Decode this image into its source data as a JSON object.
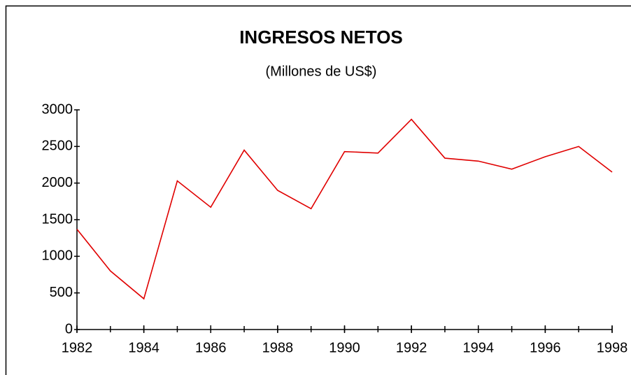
{
  "chart_data": {
    "type": "line",
    "title": "INGRESOS NETOS",
    "subtitle": "(Millones de US$)",
    "x": [
      1982,
      1983,
      1984,
      1985,
      1986,
      1987,
      1988,
      1989,
      1990,
      1991,
      1992,
      1993,
      1994,
      1995,
      1996,
      1997,
      1998
    ],
    "series": [
      {
        "name": "Ingresos netos",
        "color": "#e00000",
        "values": [
          1370,
          800,
          420,
          2030,
          1670,
          2450,
          1900,
          1650,
          2430,
          2410,
          2870,
          2340,
          2300,
          2190,
          2360,
          2500,
          2150
        ]
      }
    ],
    "xlim": [
      1982,
      1998
    ],
    "xticks": [
      1982,
      1984,
      1986,
      1988,
      1990,
      1992,
      1994,
      1996,
      1998
    ],
    "ylim": [
      0,
      3000
    ],
    "yticks": [
      0,
      500,
      1000,
      1500,
      2000,
      2500,
      3000
    ],
    "grid": false
  }
}
